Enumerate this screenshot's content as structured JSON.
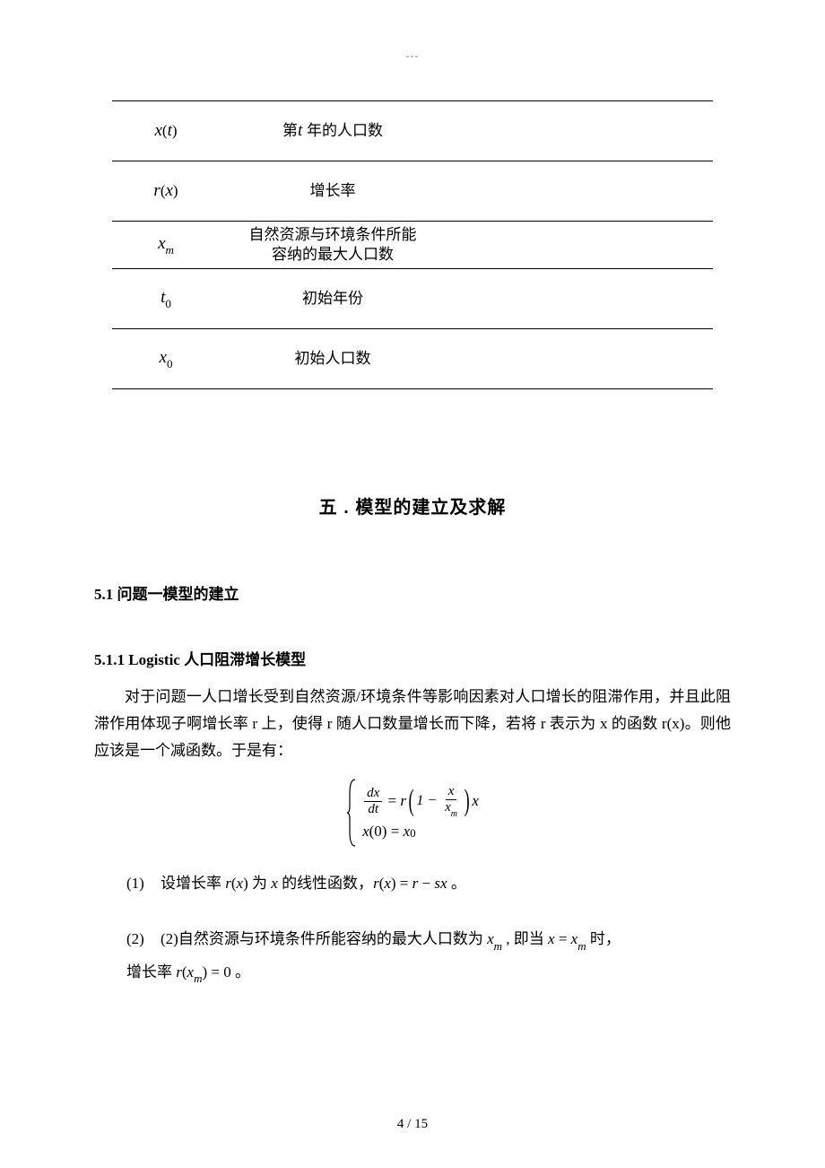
{
  "header_dashes": "---",
  "table_rows": [
    {
      "symbol_html": "<span class='math-ital'>x</span><span class='roman'>(</span><span class='math-ital'>t</span><span class='roman'>)</span>",
      "desc_html": "第<span class='math-ital'>t </span>年的人口数"
    },
    {
      "symbol_html": "<span class='math-ital'>r</span><span class='roman'>(</span><span class='math-ital'>x</span><span class='roman'>)</span>",
      "desc_html": "增长率"
    },
    {
      "symbol_html": "<span class='math-ital'>x</span><span class='sub'>m</span>",
      "desc_html": "自然资源与环境条件所能<br>容纳的最大人口数",
      "short": true
    },
    {
      "symbol_html": "<span class='math-ital'>t</span><span class='sub'><span class='roman'>0</span></span>",
      "desc_html": "初始年份"
    },
    {
      "symbol_html": "<span class='math-ital'>x</span><span class='sub'><span class='roman'>0</span></span>",
      "desc_html": "初始人口数"
    }
  ],
  "section_title": "五 . 模型的建立及求解",
  "sub_5_1": "5.1 问题一模型的建立",
  "subsub_5_1_1": "5.1.1 Logistic 人口阻滞增长模型",
  "paragraph": "对于问题一人口增长受到自然资源/环境条件等影响因素对人口增长的阻滞作用，并且此阻滞作用体现子啊增长率 r 上，使得 r 随人口数量增长而下降，若将 r 表示为 x 的函数 r(x)。则他应该是一个减函数。于是有：",
  "enum": [
    {
      "n": "(1)",
      "html": "设增长率 <span class='inline-math'>r</span><span class='roman'>(</span><span class='inline-math'>x</span><span class='roman'>)</span> 为 <span class='inline-math'>x</span> 的线性函数，<span class='inline-math'>r</span><span class='roman'>(</span><span class='inline-math'>x</span><span class='roman'>)</span> = <span class='inline-math'>r</span> − <span class='inline-math'>sx</span> 。"
    },
    {
      "n": "(2)",
      "html": "(2)自然资源与环境条件所能容纳的最大人口数为 <span class='inline-math'>x</span><span class='sub'>m</span> , 即当 <span class='inline-math'>x</span> = <span class='inline-math'>x</span><span class='sub'>m</span> 时，<br>增长率 <span class='inline-math'>r</span><span class='roman'>(</span><span class='inline-math'>x</span><span class='sub'>m</span><span class='roman'>)</span> = 0 。"
    }
  ],
  "page_number": "4 / 15"
}
